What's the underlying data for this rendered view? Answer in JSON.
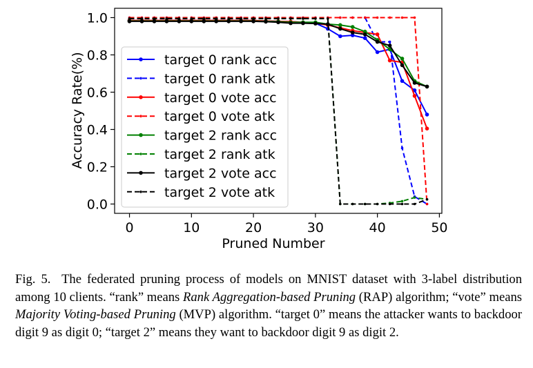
{
  "chart_data": {
    "type": "line",
    "xlabel": "Pruned Number",
    "ylabel": "Accuracy Rate(%)",
    "xlim": [
      -2.4,
      50.4
    ],
    "ylim": [
      -0.05,
      1.05
    ],
    "xticks": [
      0,
      10,
      20,
      30,
      40,
      50
    ],
    "yticks": [
      0.0,
      0.2,
      0.4,
      0.6,
      0.8,
      1.0
    ],
    "xtick_labels": [
      "0",
      "10",
      "20",
      "30",
      "40",
      "50"
    ],
    "ytick_labels": [
      "0.0",
      "0.2",
      "0.4",
      "0.6",
      "0.8",
      "1.0"
    ],
    "grid": false,
    "legend_position": "left",
    "x": [
      0,
      2,
      4,
      6,
      8,
      10,
      12,
      14,
      16,
      18,
      20,
      22,
      24,
      26,
      28,
      30,
      32,
      34,
      36,
      38,
      40,
      42,
      44,
      46,
      48
    ],
    "series": [
      {
        "name": "target 0 rank acc",
        "color": "#0000ff",
        "style": "solid",
        "values": [
          0.985,
          0.985,
          0.985,
          0.985,
          0.985,
          0.985,
          0.985,
          0.985,
          0.985,
          0.985,
          0.985,
          0.982,
          0.98,
          0.978,
          0.975,
          0.97,
          0.94,
          0.9,
          0.905,
          0.89,
          0.815,
          0.83,
          0.66,
          0.61,
          0.48
        ]
      },
      {
        "name": "target 0 rank atk",
        "color": "#0000ff",
        "style": "dashed",
        "values": [
          1.0,
          1.0,
          1.0,
          1.0,
          1.0,
          1.0,
          1.0,
          1.0,
          1.0,
          1.0,
          1.0,
          1.0,
          1.0,
          1.0,
          1.0,
          1.0,
          1.0,
          1.0,
          1.0,
          1.0,
          0.87,
          0.87,
          0.3,
          0.04,
          0.0
        ]
      },
      {
        "name": "target 0 vote acc",
        "color": "#ff0000",
        "style": "solid",
        "values": [
          0.985,
          0.985,
          0.985,
          0.985,
          0.985,
          0.985,
          0.985,
          0.985,
          0.985,
          0.985,
          0.985,
          0.982,
          0.98,
          0.978,
          0.975,
          0.97,
          0.96,
          0.945,
          0.93,
          0.92,
          0.91,
          0.77,
          0.76,
          0.58,
          0.405
        ]
      },
      {
        "name": "target 0 vote atk",
        "color": "#ff0000",
        "style": "dashed",
        "values": [
          1.0,
          1.0,
          1.0,
          1.0,
          1.0,
          1.0,
          1.0,
          1.0,
          1.0,
          1.0,
          1.0,
          1.0,
          1.0,
          1.0,
          1.0,
          1.0,
          1.0,
          1.0,
          1.0,
          1.0,
          1.0,
          1.0,
          1.0,
          1.0,
          0.0
        ]
      },
      {
        "name": "target 2 rank acc",
        "color": "#008000",
        "style": "solid",
        "values": [
          0.982,
          0.982,
          0.982,
          0.982,
          0.982,
          0.982,
          0.982,
          0.982,
          0.982,
          0.982,
          0.982,
          0.98,
          0.978,
          0.975,
          0.975,
          0.975,
          0.965,
          0.96,
          0.95,
          0.925,
          0.88,
          0.83,
          0.78,
          0.66,
          0.63
        ]
      },
      {
        "name": "target 2 rank atk",
        "color": "#008000",
        "style": "dashed",
        "values": [
          0.995,
          0.995,
          0.995,
          0.995,
          0.995,
          0.995,
          0.995,
          0.995,
          0.995,
          0.995,
          0.995,
          0.995,
          0.995,
          0.995,
          0.995,
          0.995,
          0.995,
          0.0,
          0.0,
          0.0,
          0.0,
          0.005,
          0.015,
          0.035,
          0.025
        ]
      },
      {
        "name": "target 2 vote acc",
        "color": "#000000",
        "style": "solid",
        "values": [
          0.98,
          0.98,
          0.98,
          0.98,
          0.98,
          0.98,
          0.98,
          0.98,
          0.98,
          0.98,
          0.98,
          0.978,
          0.975,
          0.97,
          0.97,
          0.968,
          0.965,
          0.94,
          0.92,
          0.91,
          0.87,
          0.85,
          0.745,
          0.65,
          0.63
        ]
      },
      {
        "name": "target 2 vote atk",
        "color": "#000000",
        "style": "dashed",
        "values": [
          0.995,
          0.995,
          0.995,
          0.995,
          0.995,
          0.995,
          0.995,
          0.995,
          0.995,
          0.995,
          0.995,
          0.995,
          0.995,
          0.995,
          0.995,
          0.995,
          0.995,
          0.0,
          0.0,
          0.0,
          0.0,
          0.0,
          0.0,
          0.0,
          0.025
        ]
      }
    ]
  },
  "caption": {
    "prefix": "Fig. 5.",
    "text_1": "The federated pruning process of models on MNIST dataset with 3-label distribution among 10 clients. “rank” means ",
    "italic_1": "Rank Aggregation-based Pruning",
    "text_2": " (RAP) algorithm; “vote” means ",
    "italic_2": "Majority Voting-based Pruning",
    "text_3": " (MVP) algorithm. “target 0” means the attacker wants to backdoor digit 9 as digit 0; “target 2” means they want to backdoor digit 9 as digit 2."
  }
}
